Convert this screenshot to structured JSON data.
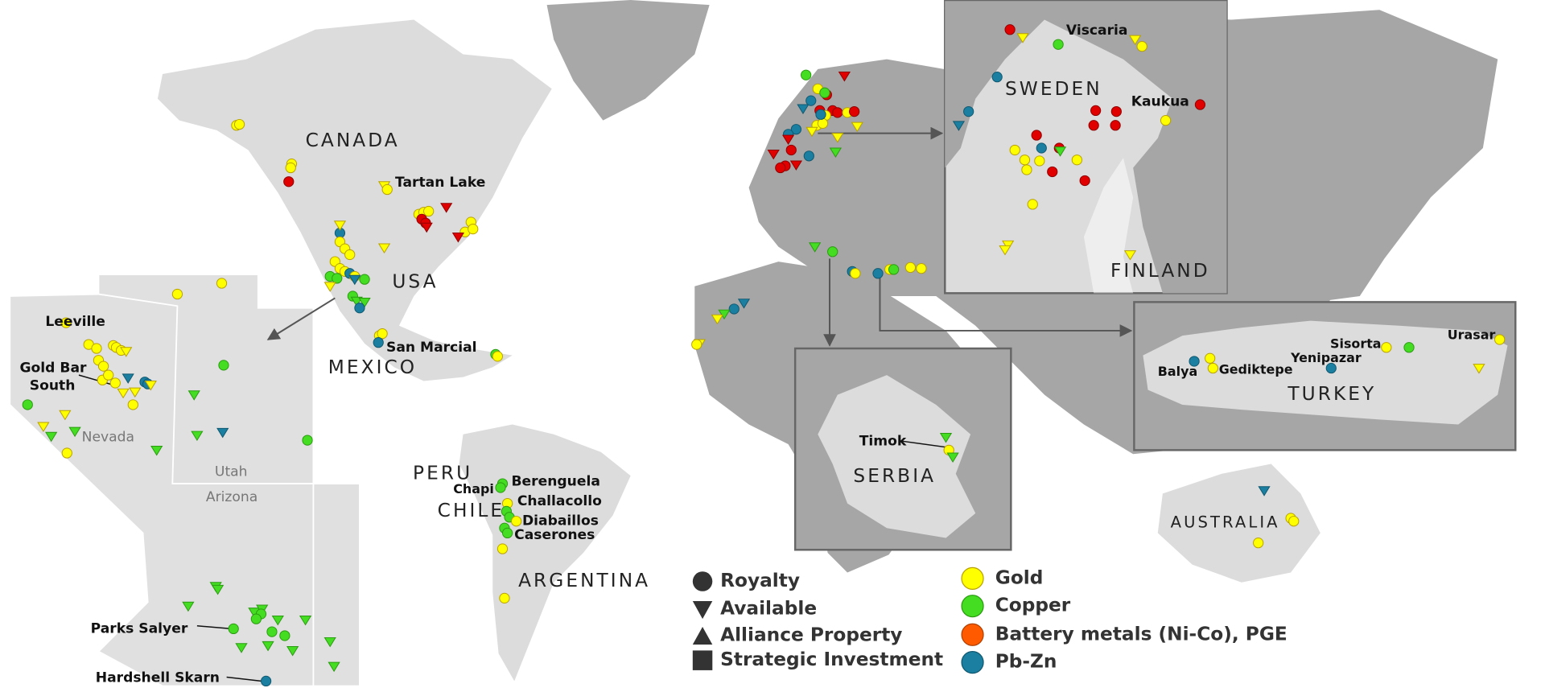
{
  "countries": [
    "CANADA",
    "USA",
    "MEXICO",
    "PERU",
    "CHILE",
    "ARGENTINA",
    "SWEDEN",
    "FINLAND",
    "SERBIA",
    "TURKEY",
    "AUSTRALIA"
  ],
  "states": [
    "Nevada",
    "Utah",
    "Arizona"
  ],
  "sites": [
    "Tartan Lake",
    "San Marcial",
    "Leeville",
    [
      "Gold Bar",
      "South"
    ],
    "Parks Salyer",
    "Hardshell Skarn",
    "Chapi",
    "Berenguela",
    "Challacollo",
    "Diabaillos",
    "Caserones",
    "Viscaria",
    "Kaukua",
    "Timok",
    "Balya",
    "Gediktepe",
    "Yenipazar",
    "Sisorta",
    "Urasar"
  ],
  "legend": {
    "ownership": [
      "Royalty",
      "Available",
      "Alliance Property",
      "Strategic Investment"
    ],
    "commodities": [
      "Gold",
      "Copper",
      "Battery metals (Ni-Co), PGE",
      "Pb-Zn"
    ]
  }
}
